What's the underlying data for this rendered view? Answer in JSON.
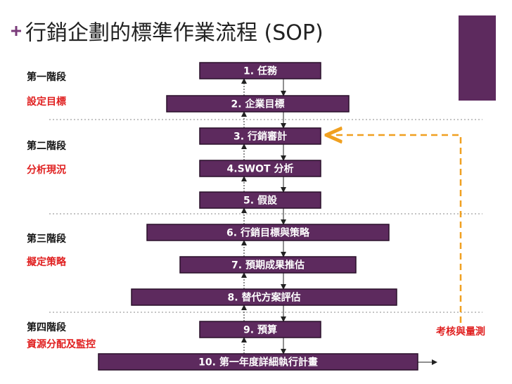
{
  "title": "行銷企劃的標準作業流程 (SOP)",
  "phases": [
    {
      "label": "第一階段",
      "goal": "設定目標"
    },
    {
      "label": "第二階段",
      "goal": "分析現況"
    },
    {
      "label": "第三階段",
      "goal": "擬定策略"
    },
    {
      "label": "第四階段",
      "goal": "資源分配及監控"
    }
  ],
  "steps": [
    "1. 任務",
    "2. 企業目標",
    "3. 行銷審計",
    "4.SWOT 分析",
    "5. 假設",
    "6. 行銷目標與策略",
    "7. 預期成果推估",
    "8. 替代方案評估",
    "9. 預算",
    "10. 第一年度詳細執行計畫"
  ],
  "feedback": "考核與量測"
}
